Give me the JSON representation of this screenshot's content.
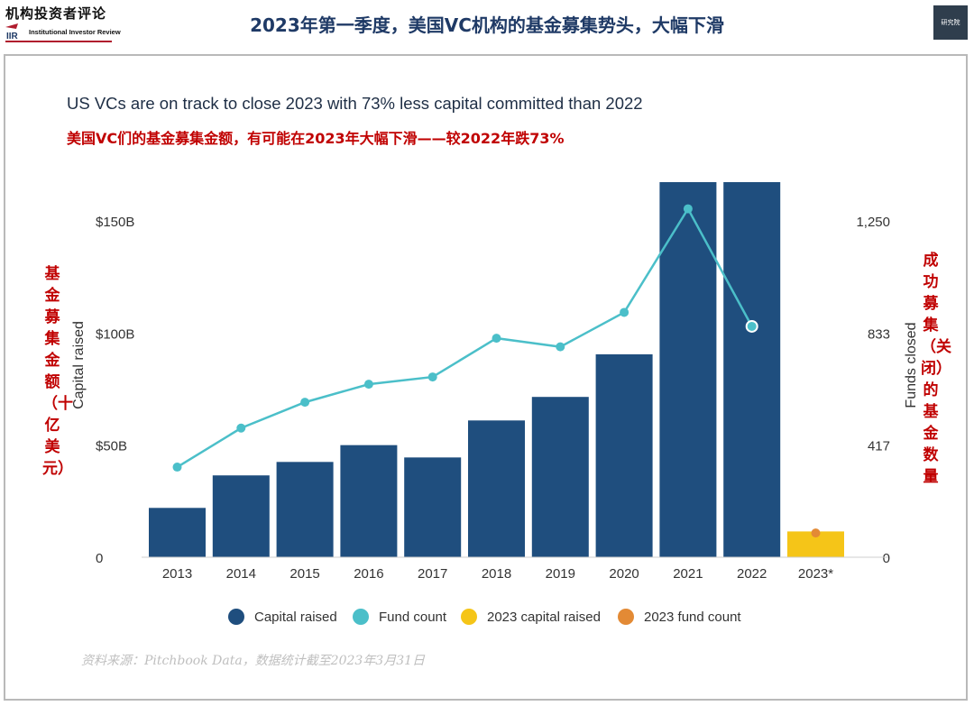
{
  "header": {
    "logo_cn": "机构投资者评论",
    "logo_mark": "IIR",
    "logo_en": "Institutional Investor Review",
    "title": "2023年第一季度，美国VC机构的基金募集势头，大幅下滑",
    "badge_text": "研究院"
  },
  "chart_title": "US VCs are on track to close 2023 with 73% less capital committed than 2022",
  "cn_subtitle": "美国VC们的基金募集金额，有可能在2023年大幅下滑——较2022年跌73%",
  "cn_left_axis": "基金募集金额（十亿美元）",
  "cn_right_axis": "成功募集（关闭）的基金数量",
  "source": "资料来源：Pitchbook Data，数据统计截至2023年3月31日",
  "colors": {
    "capital": "#1f4e7e",
    "fund_line": "#4bbfc9",
    "capital_2023": "#f5c518",
    "fund_2023": "#e38a35",
    "title": "#1f3a66",
    "cn_red": "#c00000"
  },
  "chart_data": {
    "type": "bar",
    "categories": [
      "2013",
      "2014",
      "2015",
      "2016",
      "2017",
      "2018",
      "2019",
      "2020",
      "2021",
      "2022",
      "2023*"
    ],
    "ylabel": "Capital raised",
    "y2label": "Funds closed",
    "ylim": [
      0,
      150
    ],
    "y2lim": [
      0,
      1250
    ],
    "yticks": [
      0,
      50,
      100,
      150
    ],
    "ytick_labels": [
      "0",
      "$50B",
      "$100B",
      "$150B"
    ],
    "y2ticks": [
      0,
      417,
      833,
      1250
    ],
    "y2tick_labels": [
      "0",
      "417",
      "833",
      "1,250"
    ],
    "series": [
      {
        "name": "Capital raised",
        "kind": "bar",
        "axis": "left",
        "values": [
          22,
          36.5,
          42.5,
          50,
          44.5,
          61,
          71.5,
          90.5,
          168,
          169,
          null
        ]
      },
      {
        "name": "Fund count",
        "kind": "line",
        "axis": "right",
        "values": [
          335,
          480,
          576,
          643,
          670,
          814,
          782,
          910,
          1295,
          858,
          null
        ]
      },
      {
        "name": "2023 capital raised",
        "kind": "bar",
        "axis": "left",
        "values": [
          null,
          null,
          null,
          null,
          null,
          null,
          null,
          null,
          null,
          null,
          11.5
        ]
      },
      {
        "name": "2023 fund count",
        "kind": "point",
        "axis": "right",
        "values": [
          null,
          null,
          null,
          null,
          null,
          null,
          null,
          null,
          null,
          null,
          90
        ]
      }
    ],
    "legend": [
      "Capital raised",
      "Fund count",
      "2023 capital raised",
      "2023 fund count"
    ],
    "legend_position": "bottom",
    "grid": false
  }
}
